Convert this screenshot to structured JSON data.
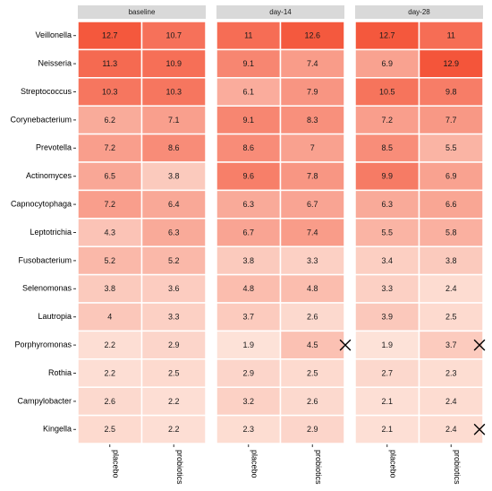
{
  "chart_data": {
    "type": "heatmap",
    "panels": [
      {
        "name": "baseline",
        "columns": [
          "placebo",
          "probiotics"
        ],
        "values": [
          [
            12.7,
            10.7
          ],
          [
            11.3,
            10.9
          ],
          [
            10.3,
            10.3
          ],
          [
            6.2,
            7.1
          ],
          [
            7.2,
            8.6
          ],
          [
            6.5,
            3.8
          ],
          [
            7.2,
            6.4
          ],
          [
            4.3,
            6.3
          ],
          [
            5.2,
            5.2
          ],
          [
            3.8,
            3.6
          ],
          [
            4,
            3.3
          ],
          [
            2.2,
            2.9
          ],
          [
            2.2,
            2.5
          ],
          [
            2.6,
            2.2
          ],
          [
            2.5,
            2.2
          ]
        ],
        "marked_rows": []
      },
      {
        "name": "day-14",
        "columns": [
          "placebo",
          "probiotics"
        ],
        "values": [
          [
            11,
            12.6
          ],
          [
            9.1,
            7.4
          ],
          [
            6.1,
            7.9
          ],
          [
            9.1,
            8.3
          ],
          [
            8.6,
            7
          ],
          [
            9.6,
            7.8
          ],
          [
            6.3,
            6.7
          ],
          [
            6.7,
            7.4
          ],
          [
            3.8,
            3.3
          ],
          [
            4.8,
            4.8
          ],
          [
            3.7,
            2.6
          ],
          [
            1.9,
            4.5
          ],
          [
            2.9,
            2.5
          ],
          [
            3.2,
            2.6
          ],
          [
            2.3,
            2.9
          ]
        ],
        "marked_rows": [
          "Porphyromonas"
        ]
      },
      {
        "name": "day-28",
        "columns": [
          "placebo",
          "probiotics"
        ],
        "values": [
          [
            12.7,
            11
          ],
          [
            6.9,
            12.9
          ],
          [
            10.5,
            9.8
          ],
          [
            7.2,
            7.7
          ],
          [
            8.5,
            5.5
          ],
          [
            9.9,
            6.9
          ],
          [
            6.3,
            6.6
          ],
          [
            5.5,
            5.8
          ],
          [
            3.4,
            3.8
          ],
          [
            3.3,
            2.4
          ],
          [
            3.9,
            2.5
          ],
          [
            1.9,
            3.7
          ],
          [
            2.7,
            2.3
          ],
          [
            2.1,
            2.4
          ],
          [
            2.1,
            2.4
          ]
        ],
        "marked_rows": [
          "Porphyromonas",
          "Kingella"
        ]
      }
    ],
    "rows": [
      "Veillonella",
      "Neisseria",
      "Streptococcus",
      "Corynebacterium",
      "Prevotella",
      "Actinomyces",
      "Capnocytophaga",
      "Leptotrichia",
      "Fusobacterium",
      "Selenomonas",
      "Lautropia",
      "Porphyromonas",
      "Rothia",
      "Campylobacter",
      "Kingella"
    ],
    "color_scale": {
      "low": "#fde2d8",
      "high": "#f4553a",
      "range": [
        1.9,
        12.9
      ]
    },
    "legend": "none",
    "grid": false
  }
}
